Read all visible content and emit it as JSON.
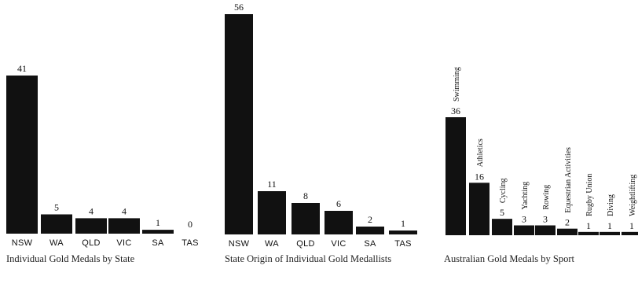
{
  "chart_data": [
    {
      "type": "bar",
      "title": "Individual Gold Medals by State",
      "categories": [
        "NSW",
        "WA",
        "QLD",
        "VIC",
        "SA",
        "TAS"
      ],
      "values": [
        41,
        5,
        4,
        4,
        1,
        0
      ],
      "ylim": [
        0,
        41
      ],
      "grid": false,
      "legend": "none",
      "bar_color": "#111111"
    },
    {
      "type": "bar",
      "title": "State Origin of Individual Gold Medallists",
      "categories": [
        "NSW",
        "WA",
        "QLD",
        "VIC",
        "SA",
        "TAS"
      ],
      "values": [
        56,
        11,
        8,
        6,
        2,
        1
      ],
      "ylim": [
        0,
        56
      ],
      "grid": false,
      "legend": "none",
      "bar_color": "#111111"
    },
    {
      "type": "bar",
      "title": "Australian Gold Medals by Sport",
      "categories": [
        "Swimming",
        "Athletics",
        "Cycling",
        "Yachting",
        "Rowing",
        "Equestrian Activities",
        "Rugby Union",
        "Diving",
        "Weightlifting"
      ],
      "values": [
        36,
        16,
        5,
        3,
        3,
        2,
        1,
        1,
        1
      ],
      "ylim": [
        0,
        36
      ],
      "grid": false,
      "legend": "none",
      "bar_color": "#111111"
    }
  ]
}
